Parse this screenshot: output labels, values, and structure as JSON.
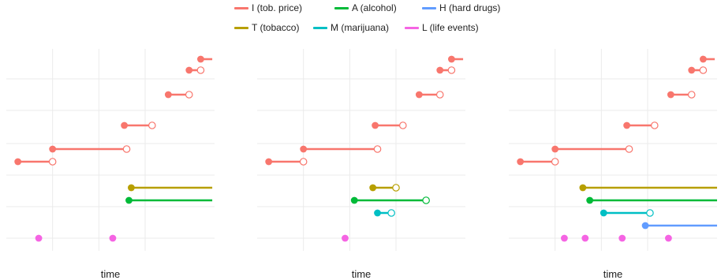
{
  "legend": [
    {
      "key": "I",
      "label": "I (tob. price)",
      "color": "#F8766D"
    },
    {
      "key": "A",
      "label": "A (alcohol)",
      "color": "#00BA38"
    },
    {
      "key": "H",
      "label": "H (hard drugs)",
      "color": "#619CFF"
    },
    {
      "key": "T",
      "label": "T (tobacco)",
      "color": "#B79F00"
    },
    {
      "key": "M",
      "label": "M (marijuana)",
      "color": "#00BFC4"
    },
    {
      "key": "L",
      "label": "L (life events)",
      "color": "#F564E3"
    }
  ],
  "chart_data": [
    {
      "type": "interval",
      "xlabel": "time",
      "grid": true,
      "intervals": [
        {
          "series": "I",
          "start": 0.5,
          "end": 2.0,
          "end_open": true
        },
        {
          "series": "I",
          "start": 2.0,
          "end": 5.2,
          "end_open": true
        },
        {
          "series": "I",
          "start": 5.1,
          "end": 6.3,
          "end_open": true
        },
        {
          "series": "I",
          "start": 7.0,
          "end": 7.9,
          "end_open": true
        },
        {
          "series": "I",
          "start": 7.9,
          "end": 8.4,
          "end_open": true
        },
        {
          "series": "I",
          "start": 8.4,
          "end": 8.9,
          "end_open": false
        },
        {
          "series": "T",
          "start": 5.4,
          "end": 8.9,
          "end_open": false
        },
        {
          "series": "A",
          "start": 5.3,
          "end": 8.9,
          "end_open": false
        }
      ],
      "events": [
        1.4,
        4.6
      ]
    },
    {
      "type": "interval",
      "xlabel": "time",
      "grid": true,
      "intervals": [
        {
          "series": "I",
          "start": 0.5,
          "end": 2.0,
          "end_open": true
        },
        {
          "series": "I",
          "start": 2.0,
          "end": 5.2,
          "end_open": true
        },
        {
          "series": "I",
          "start": 5.1,
          "end": 6.3,
          "end_open": true
        },
        {
          "series": "I",
          "start": 7.0,
          "end": 7.9,
          "end_open": true
        },
        {
          "series": "I",
          "start": 7.9,
          "end": 8.4,
          "end_open": true
        },
        {
          "series": "I",
          "start": 8.4,
          "end": 8.9,
          "end_open": false
        },
        {
          "series": "T",
          "start": 5.0,
          "end": 6.0,
          "end_open": true
        },
        {
          "series": "A",
          "start": 4.2,
          "end": 7.3,
          "end_open": true
        },
        {
          "series": "M",
          "start": 5.2,
          "end": 5.8,
          "end_open": true
        }
      ],
      "events": [
        3.8
      ]
    },
    {
      "type": "interval",
      "xlabel": "time",
      "grid": true,
      "intervals": [
        {
          "series": "I",
          "start": 0.5,
          "end": 2.0,
          "end_open": true
        },
        {
          "series": "I",
          "start": 2.0,
          "end": 5.2,
          "end_open": true
        },
        {
          "series": "I",
          "start": 5.1,
          "end": 6.3,
          "end_open": true
        },
        {
          "series": "I",
          "start": 7.0,
          "end": 7.9,
          "end_open": true
        },
        {
          "series": "I",
          "start": 7.9,
          "end": 8.4,
          "end_open": true
        },
        {
          "series": "I",
          "start": 8.4,
          "end": 8.9,
          "end_open": false
        },
        {
          "series": "T",
          "start": 3.2,
          "end": 9.0,
          "end_open": false
        },
        {
          "series": "A",
          "start": 3.5,
          "end": 9.0,
          "end_open": false
        },
        {
          "series": "M",
          "start": 4.1,
          "end": 6.1,
          "end_open": true
        },
        {
          "series": "H",
          "start": 5.9,
          "end": 9.0,
          "end_open": false
        }
      ],
      "events": [
        2.4,
        3.3,
        4.9,
        6.9
      ]
    }
  ]
}
